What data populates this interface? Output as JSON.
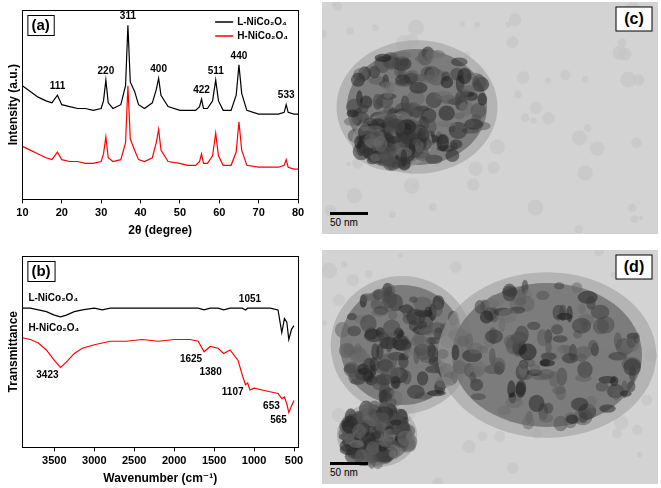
{
  "chart_data": [
    {
      "type": "line",
      "title": "(a)",
      "x_label": "2θ (degree)",
      "y_label": "Intensity (a.u.)",
      "x": [
        10,
        12,
        14,
        16,
        17.5,
        18.9,
        20,
        22,
        24,
        26,
        28,
        30,
        30.6,
        31.2,
        31.8,
        33,
        35,
        36.2,
        36.8,
        37.4,
        38.5,
        39.5,
        41,
        43,
        44,
        44.6,
        45.2,
        47,
        50,
        52,
        54,
        55,
        55.5,
        56,
        57,
        58.3,
        59.1,
        59.8,
        61,
        63,
        64.3,
        65,
        65.7,
        67,
        70,
        73,
        75,
        76.5,
        77,
        77.5,
        79,
        80
      ],
      "series": [
        {
          "name": "L-NiCo₂O₄",
          "color": "#000000",
          "values": [
            60,
            57,
            54,
            52,
            51,
            55,
            50,
            49,
            48,
            48,
            47,
            48,
            52,
            63,
            51,
            48,
            50,
            60,
            92,
            62,
            57,
            50,
            48,
            51,
            58,
            64,
            55,
            49,
            47,
            47,
            47,
            49,
            53,
            48,
            48,
            52,
            63,
            52,
            47,
            47,
            55,
            71,
            56,
            47,
            45,
            45,
            45,
            46,
            50,
            46,
            45,
            45
          ]
        },
        {
          "name": "H-NiCo₂O₄",
          "color": "#ff0000",
          "values": [
            28,
            26,
            24,
            22,
            21,
            25,
            21,
            20,
            20,
            19,
            19,
            20,
            24,
            33,
            22,
            20,
            21,
            30,
            60,
            32,
            26,
            21,
            20,
            22,
            30,
            37,
            26,
            20,
            19,
            18,
            18,
            20,
            24,
            19,
            19,
            23,
            35,
            23,
            18,
            18,
            25,
            41,
            26,
            18,
            17,
            17,
            17,
            18,
            21,
            17,
            16,
            16
          ]
        }
      ],
      "xlim": [
        10,
        80
      ],
      "xticks": [
        10,
        20,
        30,
        40,
        50,
        60,
        70,
        80
      ],
      "ylim": [
        0,
        100
      ],
      "legend": "top-right",
      "tick_labels": "x",
      "grid": false,
      "annotations": [
        {
          "x": 18.9,
          "text": "111"
        },
        {
          "x": 31.2,
          "text": "220"
        },
        {
          "x": 36.8,
          "text": "311"
        },
        {
          "x": 44.6,
          "text": "400"
        },
        {
          "x": 55.5,
          "text": "422"
        },
        {
          "x": 59.1,
          "text": "511"
        },
        {
          "x": 65,
          "text": "440"
        },
        {
          "x": 77,
          "text": "533"
        }
      ]
    },
    {
      "type": "line",
      "title": "(b)",
      "x_label": "Wavenumber (cm⁻¹)",
      "y_label": "Transmittance",
      "x": [
        3900,
        3800,
        3700,
        3600,
        3500,
        3423,
        3350,
        3250,
        3150,
        3000,
        2900,
        2800,
        2600,
        2400,
        2200,
        2000,
        1800,
        1700,
        1625,
        1550,
        1450,
        1380,
        1300,
        1200,
        1150,
        1107,
        1080,
        1051,
        1000,
        900,
        800,
        700,
        653,
        620,
        590,
        565,
        530,
        500
      ],
      "series": [
        {
          "name": "L-NiCo₂O₄",
          "color": "#000000",
          "values": [
            80,
            80,
            79,
            78,
            76,
            75,
            76,
            78,
            79,
            80,
            79,
            80,
            80,
            80,
            80,
            80,
            80,
            80,
            79,
            80,
            80,
            79,
            80,
            80,
            80,
            79,
            80,
            80,
            80,
            80,
            80,
            79,
            66,
            74,
            72,
            62,
            68,
            70
          ]
        },
        {
          "name": "H-NiCo₂O₄",
          "color": "#ff0000",
          "values": [
            63,
            62,
            60,
            56,
            50,
            46,
            49,
            54,
            57,
            59,
            60,
            61,
            61,
            62,
            61,
            62,
            62,
            61,
            55,
            58,
            57,
            54,
            56,
            50,
            42,
            36,
            37,
            33,
            34,
            33,
            32,
            31,
            28,
            29,
            25,
            20,
            24,
            27
          ]
        }
      ],
      "xlim": [
        3900,
        450
      ],
      "xticks": [
        3500,
        3000,
        2500,
        2000,
        1500,
        1000,
        500
      ],
      "ylim": [
        0,
        110
      ],
      "legend": "top-left",
      "tick_labels": "x",
      "grid": false,
      "annotations": [
        {
          "x": 3423,
          "text": "3423"
        },
        {
          "x": 1625,
          "text": "1625"
        },
        {
          "x": 1380,
          "text": "1380"
        },
        {
          "x": 1107,
          "text": "1107"
        },
        {
          "x": 1051,
          "text": "1051"
        },
        {
          "x": 653,
          "text": "653"
        },
        {
          "x": 565,
          "text": "565"
        }
      ]
    }
  ],
  "images": [
    {
      "label": "(c)",
      "scale_bar": "50 nm"
    },
    {
      "label": "(d)",
      "scale_bar": "50 nm"
    }
  ]
}
